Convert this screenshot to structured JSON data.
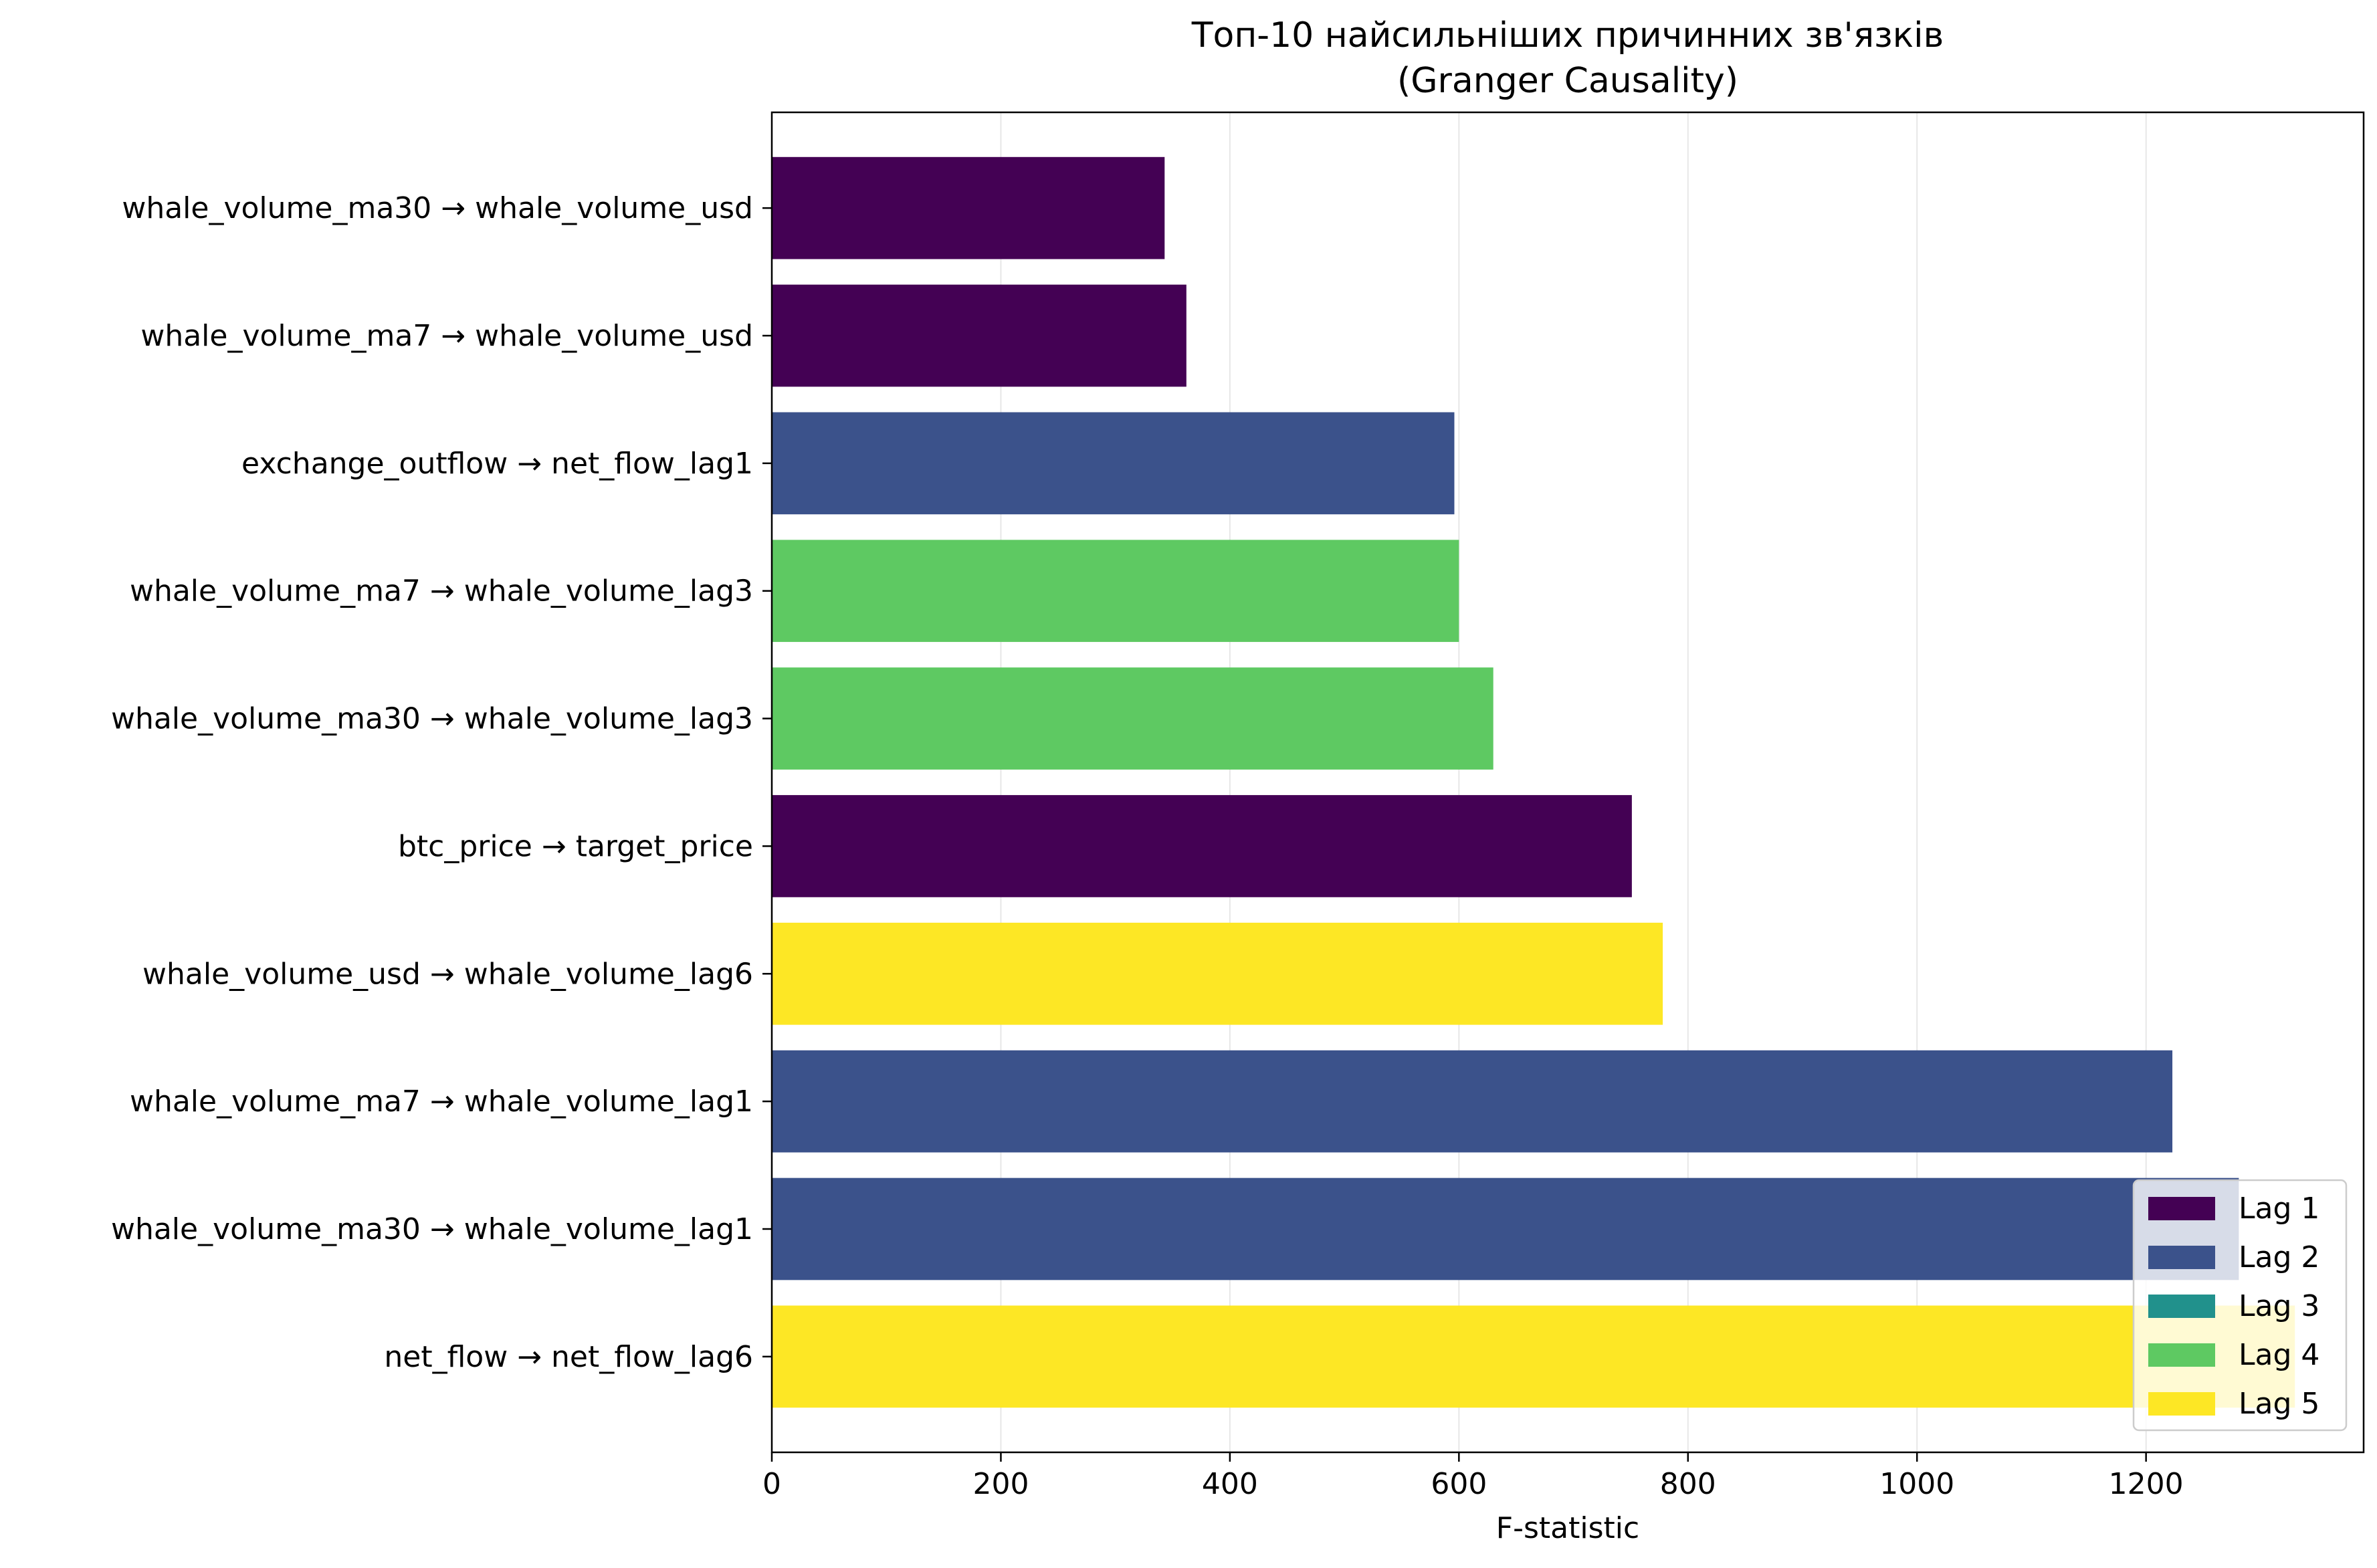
{
  "chart_data": {
    "type": "bar",
    "orientation": "horizontal",
    "title": "Топ-10 найсильніших причинних зв'язків",
    "subtitle": "(Granger Causality)",
    "xlabel": "F-statistic",
    "ylabel": "",
    "xlim": [
      0,
      1390
    ],
    "x_ticks": [
      0,
      200,
      400,
      600,
      800,
      1000,
      1200
    ],
    "x_tick_labels": [
      "0",
      "200",
      "400",
      "600",
      "800",
      "1000",
      "1200"
    ],
    "grid": "vertical",
    "legend_position": "lower-right",
    "categories": [
      "whale_volume_ma30 → whale_volume_usd",
      "whale_volume_ma7 → whale_volume_usd",
      "exchange_outflow → net_flow_lag1",
      "whale_volume_ma7 → whale_volume_lag3",
      "whale_volume_ma30 → whale_volume_lag3",
      "btc_price → target_price",
      "whale_volume_usd → whale_volume_lag6",
      "whale_volume_ma7 → whale_volume_lag1",
      "whale_volume_ma30 → whale_volume_lag1",
      "net_flow → net_flow_lag6"
    ],
    "values": [
      343,
      362,
      596,
      600,
      630,
      751,
      778,
      1223,
      1281,
      1330
    ],
    "lags": [
      1,
      1,
      2,
      4,
      4,
      1,
      5,
      2,
      2,
      5
    ],
    "legend": [
      {
        "label": "Lag 1",
        "lag": 1,
        "color": "#440154"
      },
      {
        "label": "Lag 2",
        "lag": 2,
        "color": "#3b528b"
      },
      {
        "label": "Lag 3",
        "lag": 3,
        "color": "#21918c"
      },
      {
        "label": "Lag 4",
        "lag": 4,
        "color": "#5ec962"
      },
      {
        "label": "Lag 5",
        "lag": 5,
        "color": "#fde725"
      }
    ]
  }
}
